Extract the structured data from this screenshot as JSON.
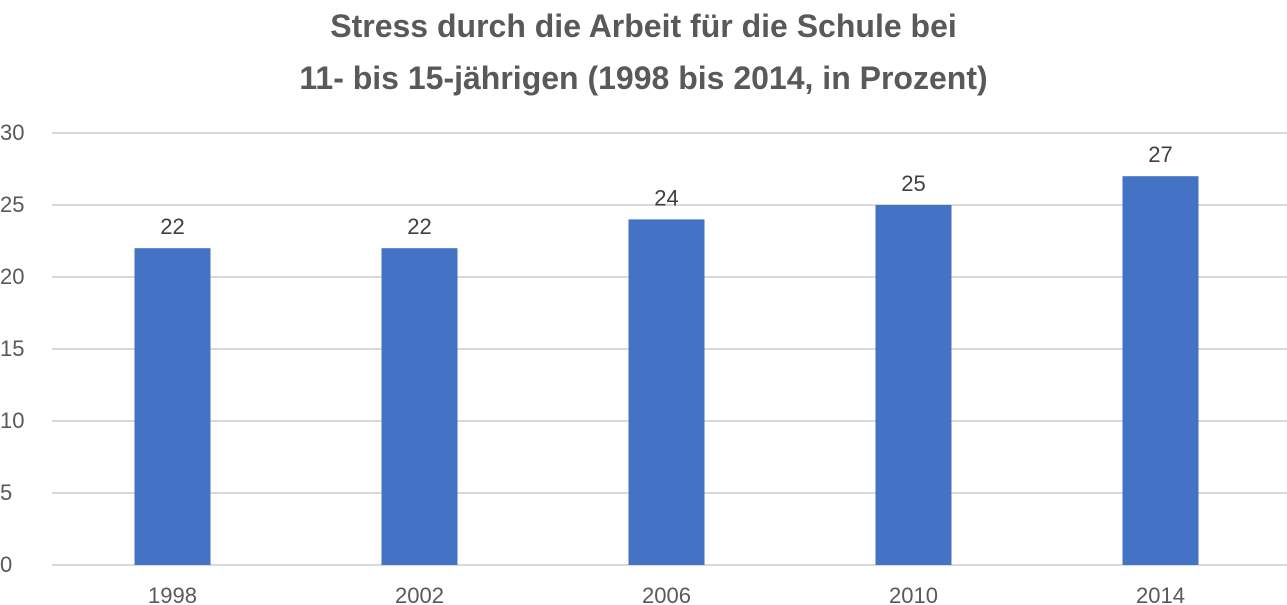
{
  "chart_data": {
    "type": "bar",
    "title_lines": [
      "Stress durch die Arbeit für die Schule bei",
      "11- bis 15-jährigen (1998 bis 2014, in Prozent)"
    ],
    "categories": [
      "1998",
      "2002",
      "2006",
      "2010",
      "2014"
    ],
    "series": [
      {
        "values": [
          22,
          22,
          24,
          25,
          27
        ]
      }
    ],
    "ylim": [
      0,
      30
    ],
    "yticks": [
      0,
      5,
      10,
      15,
      20,
      25,
      30
    ],
    "grid": true,
    "legend": "none",
    "data_labels": true,
    "colors": {
      "bar": "#4472c4",
      "grid": "#d9d9d9",
      "text": "#595959"
    }
  }
}
